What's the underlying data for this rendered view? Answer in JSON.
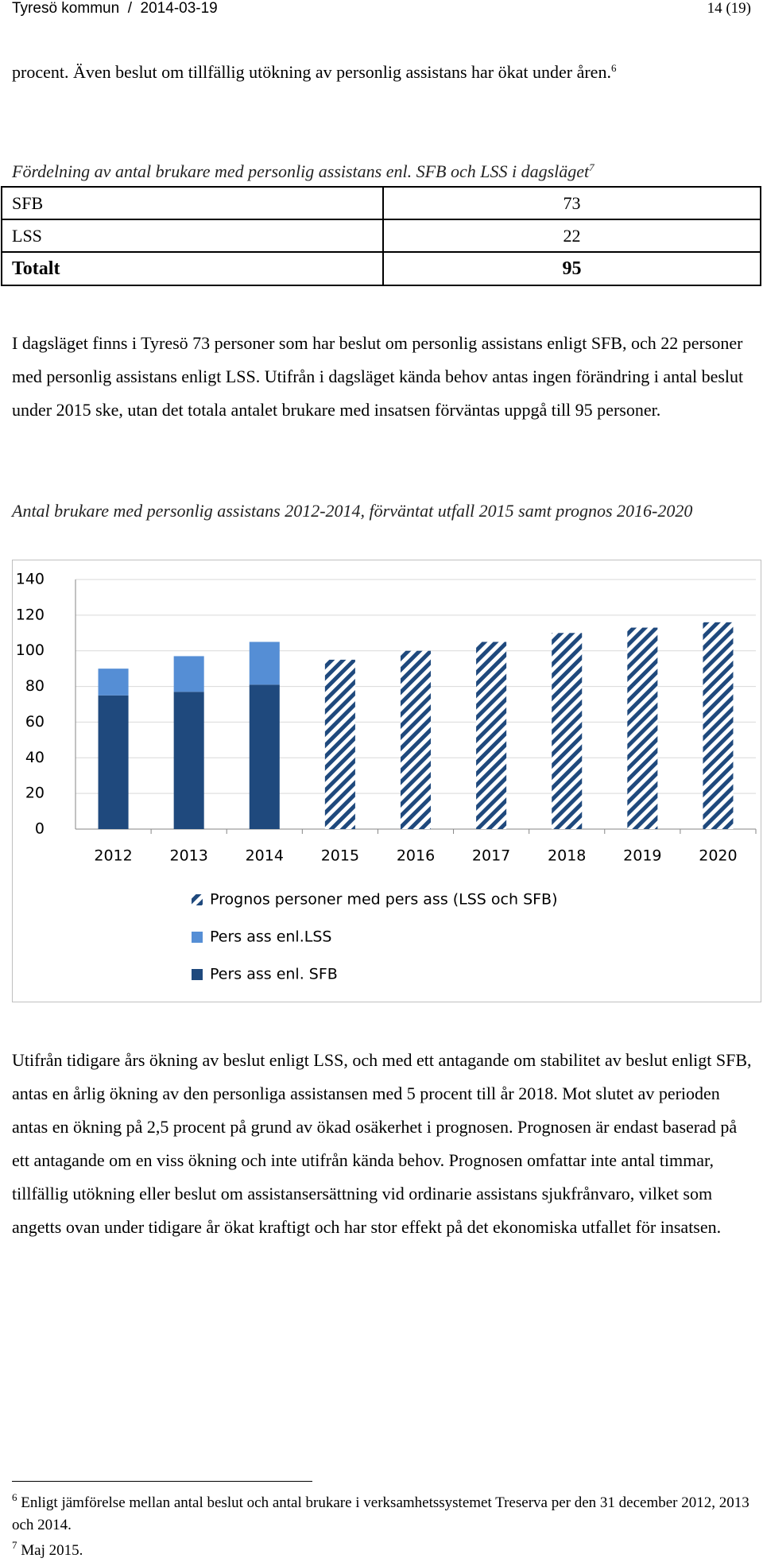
{
  "header": {
    "left": "Tyresö kommun  /  2014-03-19",
    "right": "14 (19)"
  },
  "paragraphs": [
    {
      "text": "procent. Även beslut om tillfällig utökning av personlig assistans har ökat under åren.",
      "footnote_ref": "6"
    },
    {
      "text": "I dagsläget finns i Tyresö 73 personer som har beslut om personlig assistans enligt SFB, och 22 personer med personlig assistans enligt LSS. Utifrån i dagsläget kända behov antas ingen förändring i antal beslut under 2015 ske, utan det totala antalet brukare med insatsen förväntas uppgå till 95 personer."
    },
    {
      "text": "Utifrån tidigare års ökning av beslut enligt LSS, och med ett antagande om stabilitet av beslut enligt SFB, antas en årlig ökning av den personliga assistansen med 5 procent till år 2018. Mot slutet av perioden antas en ökning på 2,5 procent på grund av ökad osäkerhet i prognosen. Prognosen är endast baserad på ett antagande om en viss ökning och inte utifrån kända behov. Prognosen omfattar inte antal timmar, tillfällig utökning eller beslut om assistansersättning vid ordinarie assistans sjukfrånvaro, vilket som angetts ovan under tidigare år ökat kraftigt och har stor effekt på det ekonomiska utfallet för insatsen."
    }
  ],
  "table": {
    "caption": "Fördelning av antal brukare med personlig assistans enl. SFB och LSS i dagsläget",
    "caption_footnote_ref": "7",
    "rows": [
      [
        "SFB",
        "73"
      ],
      [
        "LSS",
        "22"
      ],
      [
        "Totalt",
        "95"
      ]
    ]
  },
  "chart_caption": "Antal brukare med personlig assistans 2012-2014, förväntat utfall 2015 samt prognos 2016-2020",
  "chart_data": {
    "type": "stacked_bar",
    "categories": [
      "2012",
      "2013",
      "2014",
      "2015",
      "2016",
      "2017",
      "2018",
      "2019",
      "2020"
    ],
    "series": [
      {
        "name": "Pers ass enl. SFB",
        "color": "#1f497d",
        "values": [
          75,
          77,
          81,
          null,
          null,
          null,
          null,
          null,
          null
        ]
      },
      {
        "name": "Pers ass enl.LSS",
        "color": "#558ed5",
        "values": [
          15,
          20,
          24,
          null,
          null,
          null,
          null,
          null,
          null
        ]
      },
      {
        "name": "Prognos personer med pers ass (LSS och SFB)",
        "color": "#1f497d",
        "pattern": "hatch",
        "values": [
          null,
          null,
          null,
          95,
          100,
          105,
          110,
          113,
          116
        ]
      }
    ],
    "ylim": [
      0,
      140
    ],
    "yticks": [
      0,
      20,
      40,
      60,
      80,
      100,
      120,
      140
    ],
    "grid": true,
    "legend": "bottom"
  },
  "footnotes": [
    {
      "mark": "6",
      "text": "Enligt jämförelse mellan antal beslut och antal brukare i verksamhetssystemet Treserva per den 31 december 2012, 2013 och 2014."
    },
    {
      "mark": "7",
      "text": "Maj 2015."
    }
  ]
}
